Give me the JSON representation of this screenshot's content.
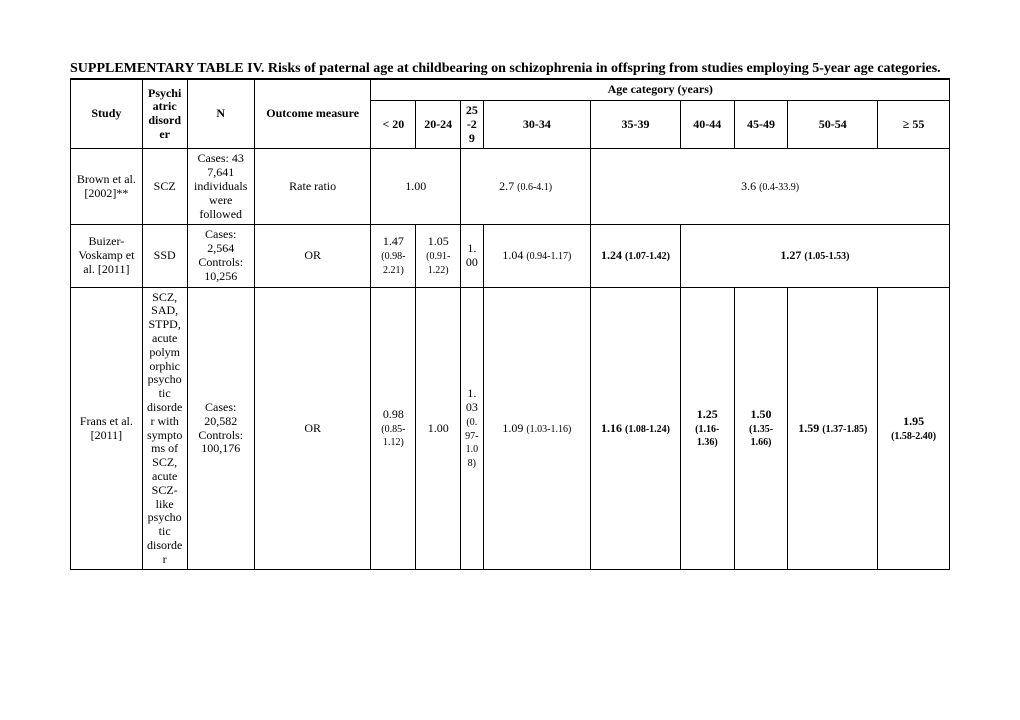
{
  "caption_bold": "SUPPLEMENTARY TABLE IV.  Risks of paternal age at childbearing on schizophrenia in offspring from studies employing 5-year age categories.",
  "headers": {
    "study": "Study",
    "disorder": "Psychiatric disorder",
    "n": "N",
    "outcome": "Outcome measure",
    "age_cat": "Age category (years)",
    "lt20": "< 20",
    "a2024": "20-24",
    "a2529": "25-29",
    "a3034": "30-34",
    "a3539": "35-39",
    "a4044": "40-44",
    "a4549": "45-49",
    "a5054": "50-54",
    "ge55": "≥  55"
  },
  "rows": {
    "brown": {
      "study": "Brown et al. [2002]**",
      "disorder": "SCZ",
      "n": "Cases: 43 7,641 individuals were followed",
      "outcome": "Rate ratio",
      "v_lt20_2024": "1.00",
      "v_2529_3034": "2.7",
      "v_2529_3034_ci": "(0.6-4.1)",
      "v_35plus": "3.6",
      "v_35plus_ci": "(0.4-33.9)"
    },
    "buizer": {
      "study": "Buizer-Voskamp et al. [2011]",
      "disorder": "SSD",
      "n": "Cases: 2,564 Controls: 10,256",
      "outcome": "OR",
      "lt20": "1.47",
      "lt20_ci": "(0.98-2.21)",
      "a2024": "1.05",
      "a2024_ci": "(0.91-1.22)",
      "a2529": "1.00",
      "a3034": "1.04",
      "a3034_ci": "(0.94-1.17)",
      "a3539": "1.24",
      "a3539_ci": "(1.07-1.42)",
      "a40plus": "1.27",
      "a40plus_ci": "(1.05-1.53)"
    },
    "frans": {
      "study": "Frans et al. [2011]",
      "disorder": "SCZ, SAD, STPD, acute polymorphic psychotic disorder with symptoms of SCZ, acute SCZ-like psychotic disorder",
      "n": "Cases: 20,582 Controls: 100,176",
      "outcome": "OR",
      "lt20": "0.98",
      "lt20_ci": "(0.85-1.12)",
      "a2024": "1.00",
      "a2529": "1.03",
      "a2529_ci": "(0.97-1.08)",
      "a3034": "1.09",
      "a3034_ci": "(1.03-1.16)",
      "a3539": "1.16",
      "a3539_ci": "(1.08-1.24)",
      "a4044": "1.25",
      "a4044_ci": "(1.16-1.36)",
      "a4549": "1.50",
      "a4549_ci": "(1.35-1.66)",
      "a5054": "1.59",
      "a5054_ci": "(1.37-1.85)",
      "ge55": "1.95",
      "ge55_ci": "(1.58-2.40)"
    }
  }
}
